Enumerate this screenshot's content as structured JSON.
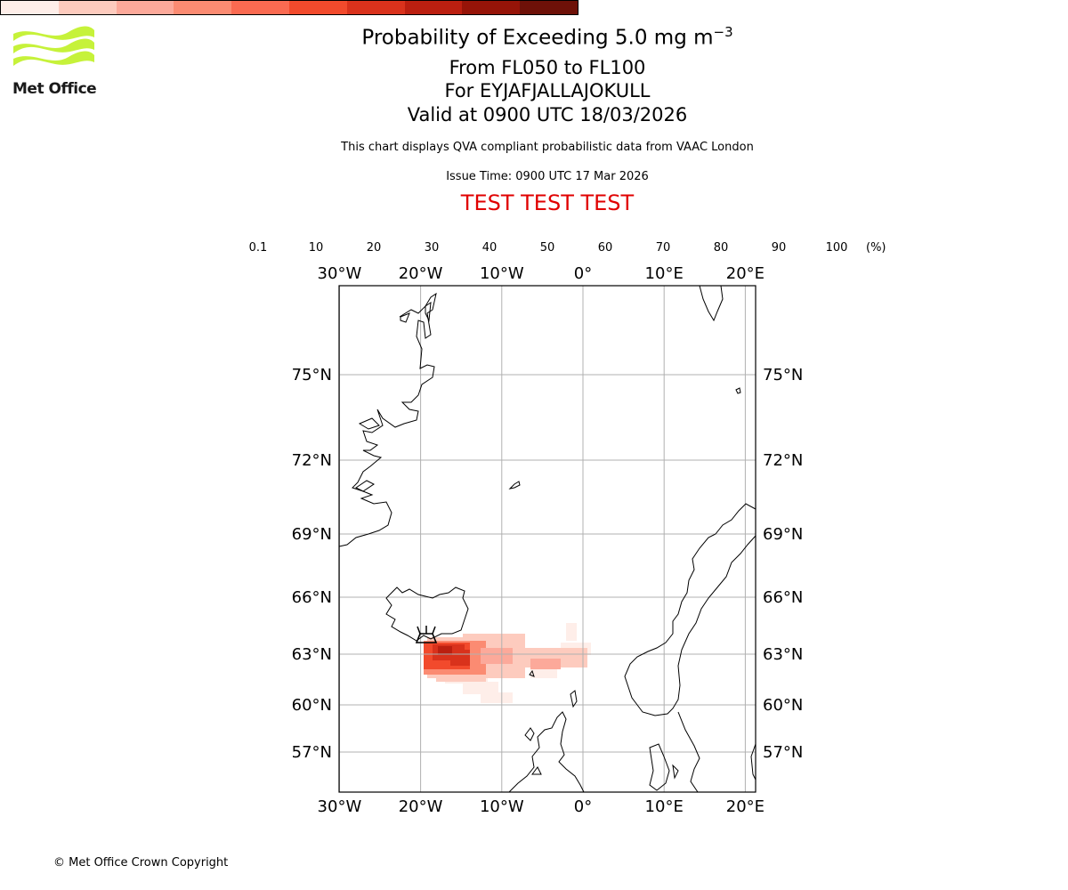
{
  "header": {
    "logo_text": "Met Office",
    "title_prefix": "Probability of Exceeding 5.0 mg m",
    "title_exponent": "−3",
    "level_range": "From FL050 to FL100",
    "volcano": "For EYJAFJALLAJOKULL",
    "valid_time": "Valid at 0900 UTC 18/03/2026",
    "disclaimer": "This chart displays QVA compliant probabilistic data from VAAC London",
    "issue_time": "Issue Time: 0900 UTC 17 Mar 2026",
    "test_banner": "TEST TEST TEST"
  },
  "colorbar": {
    "unit": "(%)",
    "ticks": [
      "0.1",
      "10",
      "20",
      "30",
      "40",
      "50",
      "60",
      "70",
      "80",
      "90",
      "100"
    ],
    "colors": [
      "#feeee9",
      "#fdcbbe",
      "#fca99a",
      "#fb8b72",
      "#fa6a51",
      "#f24a2c",
      "#d9321c",
      "#bb1f10",
      "#961408",
      "#6e1108"
    ]
  },
  "map": {
    "lon_labels": [
      "30°W",
      "20°W",
      "10°W",
      "0°",
      "10°E",
      "20°E"
    ],
    "lat_labels": [
      "75°N",
      "72°N",
      "69°N",
      "66°N",
      "63°N",
      "60°N",
      "57°N"
    ],
    "lon_values": [
      -30,
      -20,
      -10,
      0,
      10,
      20
    ],
    "lat_values": [
      75,
      72,
      69,
      66,
      63,
      60,
      57
    ],
    "volcano_marker": {
      "lat": 63.63,
      "lon": -19.62
    },
    "colors": {
      "gridline": "#b0b0b0",
      "coastline": "#000000"
    }
  },
  "footer": {
    "copyright": "© Met Office Crown Copyright"
  }
}
